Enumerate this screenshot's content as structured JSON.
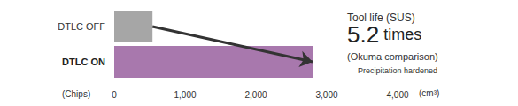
{
  "chart_data": {
    "type": "bar",
    "orientation": "horizontal",
    "categories": [
      "DTLC OFF",
      "DTLC ON"
    ],
    "values": [
      540,
      2800
    ],
    "colors": [
      "#a6a6a6",
      "#a878ad"
    ],
    "xlim": [
      0,
      4000
    ],
    "xticks": [
      0,
      {
        "value": 1000,
        "label": "1,000"
      },
      {
        "value": 2000,
        "label": "2,000"
      },
      {
        "value": 3000,
        "label": "3,000"
      },
      {
        "value": 4000,
        "label": "4,000"
      }
    ],
    "x_label": "(cm³)",
    "row_label": "(Chips)",
    "annotations": [
      "Tool life (SUS)",
      "5.2 times",
      "(Okuma comparison)",
      "Precipitation hardened"
    ],
    "grid": false,
    "data_labels": false
  }
}
